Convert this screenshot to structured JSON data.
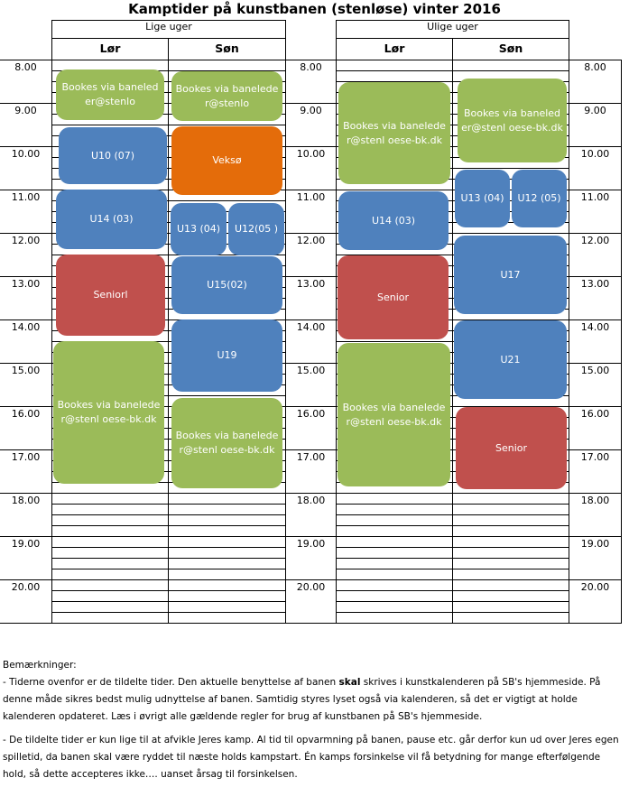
{
  "title": "Kamptider på kunstbanen (stenløse) vinter 2016",
  "groups": [
    {
      "label": "Lige uger",
      "days": [
        "Lør",
        "Søn"
      ]
    },
    {
      "label": "Ulige uger",
      "days": [
        "Lør",
        "Søn"
      ]
    }
  ],
  "times": [
    "8.00",
    "9.00",
    "10.00",
    "11.00",
    "12.00",
    "13.00",
    "14.00",
    "15.00",
    "16.00",
    "17.00",
    "18.00",
    "19.00",
    "20.00"
  ],
  "blocks": {
    "lige_lor": [
      "Bookes  via baneleder@stenlo",
      "U10 (07)",
      "U14 (03)",
      "Seniorl",
      "Bookes  via baneleder@stenl oese-bk.dk"
    ],
    "lige_son": [
      "Bookes  via baneleder@stenlo",
      "Veksø",
      "U13 (04)",
      "U12(05 )",
      "U15(02)",
      "U19",
      "Bookes  via baneleder@stenl oese-bk.dk"
    ],
    "ulige_lor": [
      "Bookes  via baneleder@stenl oese-bk.dk",
      "U14 (03)",
      "Senior",
      "Bookes  via baneleder@stenl oese-bk.dk"
    ],
    "ulige_son": [
      "Bookes  via baneleder@stenl oese-bk.dk",
      "U13 (04)",
      "U12 (05)",
      "U17",
      "U21",
      "Senior"
    ]
  },
  "colors": {
    "green": "#9BBB59",
    "blue": "#4F81BD",
    "orange": "#E46C0A",
    "red": "#C0504D"
  },
  "notes": {
    "heading": "Bemærkninger:",
    "p1_a": "- Tiderne ovenfor er de tildelte tider. Den aktuelle benyttelse af banen ",
    "p1_bold": "skal",
    "p1_b": " skrives i kunstkalenderen på SB's hjemmeside. På denne måde sikres bedst mulig udnyttelse af banen. Samtidig styres lyset også via kalenderen, så det er vigtigt at holde kalenderen opdateret. Læs i øvrigt alle gældende regler for brug af kunstbanen på SB's hjemmeside.",
    "p2": "- De tildelte tider er kun lige til at afvikle Jeres kamp. Al tid til opvarmning på banen, pause etc. går derfor kun ud over Jeres egen spilletid, da banen skal være ryddet til næste holds kampstart. Én kamps forsinkelse vil få betydning for mange efterfølgende hold, så dette accepteres ikke…. uanset årsag til forsinkelsen."
  }
}
